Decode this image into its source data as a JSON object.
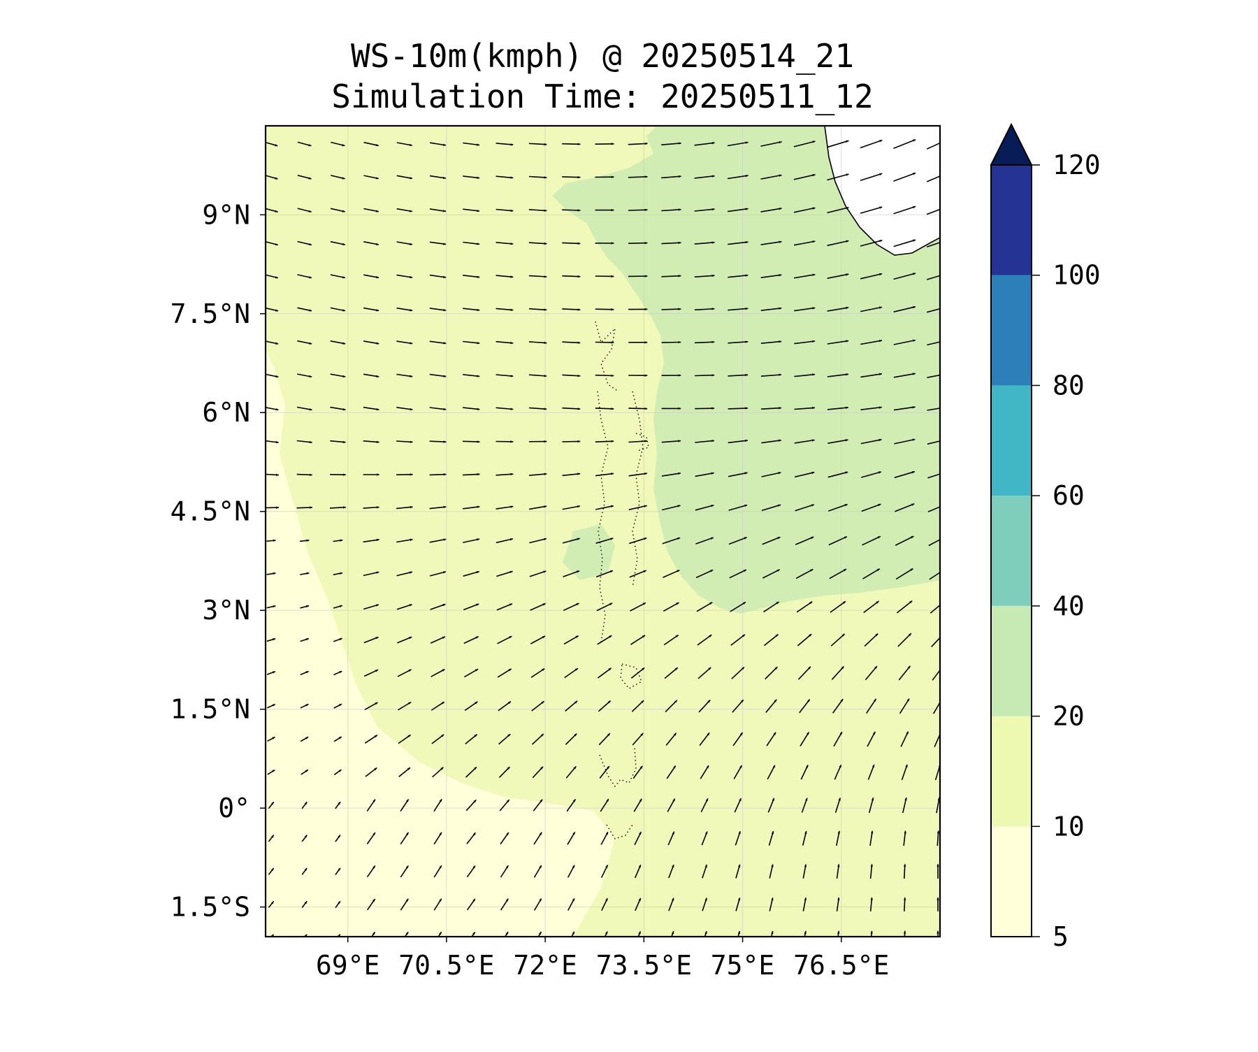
{
  "title": {
    "line1": "WS-10m(kmph) @ 20250514_21",
    "line2": "Simulation Time: 20250511_12"
  },
  "map": {
    "lon_range": [
      67.75,
      78.0
    ],
    "lat_range": [
      -1.95,
      10.35
    ],
    "x_ticks": [
      {
        "value": 69.0,
        "label": "69°E"
      },
      {
        "value": 70.5,
        "label": "70.5°E"
      },
      {
        "value": 72.0,
        "label": "72°E"
      },
      {
        "value": 73.5,
        "label": "73.5°E"
      },
      {
        "value": 75.0,
        "label": "75°E"
      },
      {
        "value": 76.5,
        "label": "76.5°E"
      }
    ],
    "y_ticks": [
      {
        "value": 9.0,
        "label": "9°N"
      },
      {
        "value": 7.5,
        "label": "7.5°N"
      },
      {
        "value": 6.0,
        "label": "6°N"
      },
      {
        "value": 4.5,
        "label": "4.5°N"
      },
      {
        "value": 3.0,
        "label": "3°N"
      },
      {
        "value": 1.5,
        "label": "1.5°N"
      },
      {
        "value": 0.0,
        "label": "0°"
      },
      {
        "value": -1.5,
        "label": "1.5°S"
      }
    ],
    "gridlines": true,
    "colors": {
      "c5_10": "#ffffd9",
      "c10_20": "#f0f9b9",
      "c20_40": "#d2edb3",
      "c40_60": "#7dcbbb",
      "land": "#ffffff"
    }
  },
  "colorbar": {
    "levels": [
      {
        "label": "5",
        "value": 5
      },
      {
        "label": "10",
        "value": 10
      },
      {
        "label": "20",
        "value": 20
      },
      {
        "label": "40",
        "value": 40
      },
      {
        "label": "60",
        "value": 60
      },
      {
        "label": "80",
        "value": 80
      },
      {
        "label": "100",
        "value": 100
      },
      {
        "label": "120",
        "value": 120
      }
    ],
    "colors": [
      "#ffffd9",
      "#edf8b1",
      "#c7e9b4",
      "#7fcdbb",
      "#41b6c4",
      "#2c7fb8",
      "#253494"
    ],
    "extend_color": "#081d58"
  }
}
